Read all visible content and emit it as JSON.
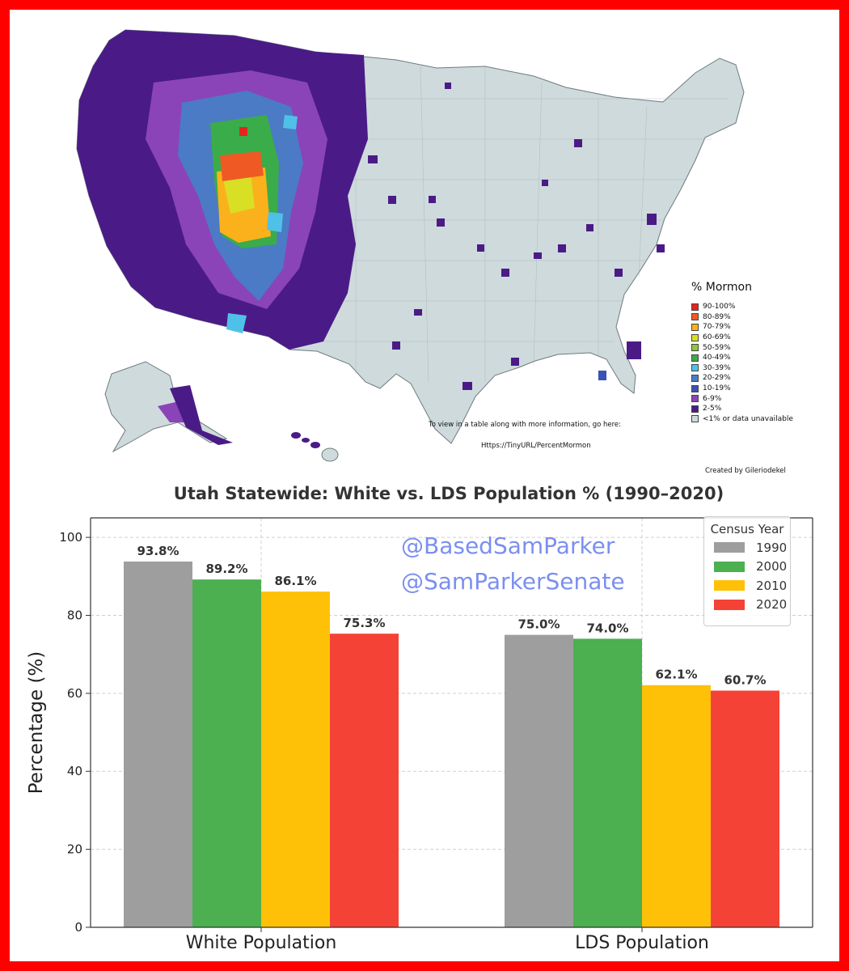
{
  "map": {
    "legend_title": "% Mormon",
    "legend": [
      {
        "label": "90-100%",
        "color": "#e8231c"
      },
      {
        "label": "80-89%",
        "color": "#ef5a24"
      },
      {
        "label": "70-79%",
        "color": "#fbb11b"
      },
      {
        "label": "60-69%",
        "color": "#d8df24"
      },
      {
        "label": "50-59%",
        "color": "#8dc63f"
      },
      {
        "label": "40-49%",
        "color": "#3aac4a"
      },
      {
        "label": "30-39%",
        "color": "#4fc1e9"
      },
      {
        "label": "20-29%",
        "color": "#4b7bc4"
      },
      {
        "label": "10-19%",
        "color": "#3a52b5"
      },
      {
        "label": "6-9%",
        "color": "#8a44b8"
      },
      {
        "label": "2-5%",
        "color": "#4a1b86"
      },
      {
        "label": "<1% or data unavailable",
        "color": "#cfdadc"
      }
    ],
    "note_line1": "To view in a table along with more information, go here:",
    "note_line2": "Https://TinyURL/PercentMormon",
    "credit": "Created by Gileriodekel"
  },
  "watermark": {
    "line1": "@BasedSamParker",
    "line2": "@SamParkerSenate"
  },
  "chart_data": {
    "type": "bar",
    "title": "Utah Statewide: White vs. LDS Population % (1990–2020)",
    "xlabel": "",
    "ylabel": "Percentage (%)",
    "ylim": [
      0,
      105
    ],
    "yticks": [
      "0",
      "20",
      "40",
      "60",
      "80",
      "100"
    ],
    "grid": true,
    "categories": [
      "White Population",
      "LDS Population"
    ],
    "legend_title": "Census Year",
    "legend_position": "top-right",
    "series": [
      {
        "name": "1990",
        "color": "#9e9e9e",
        "values": [
          93.8,
          75.0
        ],
        "labels": [
          "93.8%",
          "75.0%"
        ]
      },
      {
        "name": "2000",
        "color": "#4caf50",
        "values": [
          89.2,
          74.0
        ],
        "labels": [
          "89.2%",
          "74.0%"
        ]
      },
      {
        "name": "2010",
        "color": "#ffc107",
        "values": [
          86.1,
          62.1
        ],
        "labels": [
          "86.1%",
          "62.1%"
        ]
      },
      {
        "name": "2020",
        "color": "#f44336",
        "values": [
          75.3,
          60.7
        ],
        "labels": [
          "75.3%",
          "60.7%"
        ]
      }
    ]
  }
}
